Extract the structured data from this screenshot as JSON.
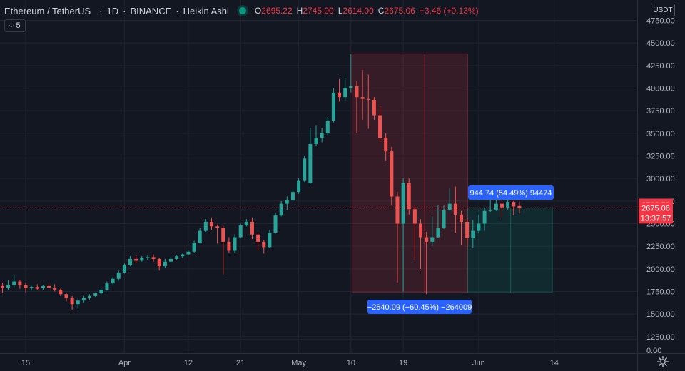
{
  "header": {
    "symbol": "Ethereum / TetherUS",
    "interval": "1D",
    "exchange": "BINANCE",
    "chart_style": "Heikin Ashi",
    "open_label": "O",
    "open": "2695.22",
    "high_label": "H",
    "high": "2745.00",
    "low_label": "L",
    "low": "2614.00",
    "close_label": "C",
    "close": "2675.06",
    "change": "+3.46 (+0.13%)",
    "indicators_count": "5"
  },
  "currency": "USDT",
  "price_tags": {
    "high": "2713.59",
    "last": "2675.06",
    "countdown": "13:37:57"
  },
  "measurements": {
    "drop": "−2640.09 (−60.45%) −264009",
    "rise": "944.74 (54.49%) 94474"
  },
  "colors": {
    "up": "#26a69a",
    "down": "#ef5350",
    "background": "#131722",
    "grid": "#1f2430",
    "axis_text": "#b2b5be",
    "tag_red": "#f23645",
    "label_blue": "#2962ff"
  },
  "chart_data": {
    "type": "candlestick",
    "style": "Heikin Ashi",
    "grid": true,
    "y_ticks": [
      4750,
      4500,
      4250,
      4000,
      3750,
      3500,
      3250,
      3000,
      2750,
      2500,
      2250,
      2000,
      1750,
      1500,
      1250
    ],
    "y_tick_labels": [
      "4750.00",
      "4500.00",
      "4250.00",
      "4000.00",
      "3750.00",
      "3500.00",
      "3250.00",
      "3000.00",
      "2750.00",
      "2500.00",
      "2250.00",
      "2000.00",
      "1750.00",
      "1500.00",
      "1250.00"
    ],
    "volume_zero_label": "0.00",
    "x_ticks": [
      {
        "label": "15",
        "day": 0
      },
      {
        "label": "Apr",
        "day": 17
      },
      {
        "label": "12",
        "day": 28
      },
      {
        "label": "21",
        "day": 37
      },
      {
        "label": "May",
        "day": 47
      },
      {
        "label": "10",
        "day": 56
      },
      {
        "label": "19",
        "day": 65
      },
      {
        "label": "Jun",
        "day": 78
      },
      {
        "label": "14",
        "day": 91
      }
    ],
    "last_price": 2675.06,
    "day_high_line": 2713.59,
    "candles": [
      {
        "day": -4,
        "o": 1810,
        "h": 1850,
        "l": 1730,
        "c": 1790
      },
      {
        "day": -3,
        "o": 1790,
        "h": 1880,
        "l": 1770,
        "c": 1820
      },
      {
        "day": -2,
        "o": 1820,
        "h": 1930,
        "l": 1800,
        "c": 1860
      },
      {
        "day": -1,
        "o": 1860,
        "h": 1880,
        "l": 1780,
        "c": 1820
      },
      {
        "day": 0,
        "o": 1820,
        "h": 1840,
        "l": 1740,
        "c": 1790
      },
      {
        "day": 1,
        "o": 1790,
        "h": 1810,
        "l": 1760,
        "c": 1800
      },
      {
        "day": 2,
        "o": 1800,
        "h": 1830,
        "l": 1770,
        "c": 1780
      },
      {
        "day": 3,
        "o": 1790,
        "h": 1820,
        "l": 1770,
        "c": 1810
      },
      {
        "day": 4,
        "o": 1810,
        "h": 1830,
        "l": 1780,
        "c": 1790
      },
      {
        "day": 5,
        "o": 1790,
        "h": 1830,
        "l": 1750,
        "c": 1770
      },
      {
        "day": 6,
        "o": 1770,
        "h": 1780,
        "l": 1700,
        "c": 1720
      },
      {
        "day": 7,
        "o": 1720,
        "h": 1730,
        "l": 1640,
        "c": 1680
      },
      {
        "day": 8,
        "o": 1680,
        "h": 1700,
        "l": 1550,
        "c": 1610
      },
      {
        "day": 9,
        "o": 1610,
        "h": 1680,
        "l": 1560,
        "c": 1650
      },
      {
        "day": 10,
        "o": 1650,
        "h": 1700,
        "l": 1630,
        "c": 1680
      },
      {
        "day": 11,
        "o": 1680,
        "h": 1720,
        "l": 1660,
        "c": 1700
      },
      {
        "day": 12,
        "o": 1700,
        "h": 1740,
        "l": 1690,
        "c": 1730
      },
      {
        "day": 13,
        "o": 1730,
        "h": 1780,
        "l": 1720,
        "c": 1770
      },
      {
        "day": 14,
        "o": 1770,
        "h": 1860,
        "l": 1760,
        "c": 1840
      },
      {
        "day": 15,
        "o": 1840,
        "h": 1910,
        "l": 1830,
        "c": 1890
      },
      {
        "day": 16,
        "o": 1890,
        "h": 1980,
        "l": 1870,
        "c": 1960
      },
      {
        "day": 17,
        "o": 1960,
        "h": 2060,
        "l": 1950,
        "c": 2040
      },
      {
        "day": 18,
        "o": 2040,
        "h": 2140,
        "l": 2030,
        "c": 2110
      },
      {
        "day": 19,
        "o": 2110,
        "h": 2150,
        "l": 2070,
        "c": 2090
      },
      {
        "day": 20,
        "o": 2090,
        "h": 2140,
        "l": 2080,
        "c": 2120
      },
      {
        "day": 21,
        "o": 2120,
        "h": 2150,
        "l": 2100,
        "c": 2130
      },
      {
        "day": 22,
        "o": 2130,
        "h": 2160,
        "l": 2080,
        "c": 2110
      },
      {
        "day": 23,
        "o": 2110,
        "h": 2120,
        "l": 1980,
        "c": 2030
      },
      {
        "day": 24,
        "o": 2030,
        "h": 2110,
        "l": 2010,
        "c": 2080
      },
      {
        "day": 25,
        "o": 2080,
        "h": 2130,
        "l": 2070,
        "c": 2110
      },
      {
        "day": 26,
        "o": 2110,
        "h": 2150,
        "l": 2100,
        "c": 2140
      },
      {
        "day": 27,
        "o": 2140,
        "h": 2170,
        "l": 2120,
        "c": 2160
      },
      {
        "day": 28,
        "o": 2160,
        "h": 2200,
        "l": 2150,
        "c": 2190
      },
      {
        "day": 29,
        "o": 2190,
        "h": 2310,
        "l": 2180,
        "c": 2290
      },
      {
        "day": 30,
        "o": 2290,
        "h": 2450,
        "l": 2280,
        "c": 2420
      },
      {
        "day": 31,
        "o": 2420,
        "h": 2550,
        "l": 2410,
        "c": 2520
      },
      {
        "day": 32,
        "o": 2520,
        "h": 2570,
        "l": 2430,
        "c": 2470
      },
      {
        "day": 33,
        "o": 2470,
        "h": 2490,
        "l": 2280,
        "c": 2450
      },
      {
        "day": 34,
        "o": 2450,
        "h": 2490,
        "l": 1940,
        "c": 2300
      },
      {
        "day": 35,
        "o": 2300,
        "h": 2350,
        "l": 2180,
        "c": 2200
      },
      {
        "day": 36,
        "o": 2200,
        "h": 2380,
        "l": 2180,
        "c": 2350
      },
      {
        "day": 37,
        "o": 2350,
        "h": 2500,
        "l": 2340,
        "c": 2480
      },
      {
        "day": 38,
        "o": 2480,
        "h": 2550,
        "l": 2470,
        "c": 2520
      },
      {
        "day": 39,
        "o": 2520,
        "h": 2570,
        "l": 2330,
        "c": 2380
      },
      {
        "day": 40,
        "o": 2380,
        "h": 2400,
        "l": 2200,
        "c": 2300
      },
      {
        "day": 41,
        "o": 2300,
        "h": 2320,
        "l": 2170,
        "c": 2240
      },
      {
        "day": 42,
        "o": 2240,
        "h": 2430,
        "l": 2230,
        "c": 2400
      },
      {
        "day": 43,
        "o": 2400,
        "h": 2620,
        "l": 2390,
        "c": 2590
      },
      {
        "day": 44,
        "o": 2590,
        "h": 2750,
        "l": 2580,
        "c": 2720
      },
      {
        "day": 45,
        "o": 2720,
        "h": 2800,
        "l": 2650,
        "c": 2760
      },
      {
        "day": 46,
        "o": 2760,
        "h": 2880,
        "l": 2750,
        "c": 2850
      },
      {
        "day": 47,
        "o": 2850,
        "h": 3000,
        "l": 2830,
        "c": 2980
      },
      {
        "day": 48,
        "o": 2980,
        "h": 3250,
        "l": 2960,
        "c": 3220
      },
      {
        "day": 49,
        "o": 2950,
        "h": 3560,
        "l": 2940,
        "c": 3380
      },
      {
        "day": 50,
        "o": 3380,
        "h": 3590,
        "l": 3360,
        "c": 3450
      },
      {
        "day": 51,
        "o": 3450,
        "h": 3560,
        "l": 3400,
        "c": 3500
      },
      {
        "day": 52,
        "o": 3500,
        "h": 3680,
        "l": 3480,
        "c": 3640
      },
      {
        "day": 53,
        "o": 3640,
        "h": 4000,
        "l": 3620,
        "c": 3950
      },
      {
        "day": 54,
        "o": 3950,
        "h": 4100,
        "l": 3850,
        "c": 3900
      },
      {
        "day": 55,
        "o": 3900,
        "h": 4110,
        "l": 3860,
        "c": 4000
      },
      {
        "day": 56,
        "o": 4000,
        "h": 4380,
        "l": 3950,
        "c": 4020
      },
      {
        "day": 57,
        "o": 4020,
        "h": 4080,
        "l": 3500,
        "c": 3900
      },
      {
        "day": 58,
        "o": 3900,
        "h": 4200,
        "l": 3650,
        "c": 3880
      },
      {
        "day": 59,
        "o": 3880,
        "h": 4150,
        "l": 3550,
        "c": 3870
      },
      {
        "day": 60,
        "o": 3870,
        "h": 3900,
        "l": 3650,
        "c": 3700
      },
      {
        "day": 61,
        "o": 3700,
        "h": 3800,
        "l": 3400,
        "c": 3450
      },
      {
        "day": 62,
        "o": 3450,
        "h": 3500,
        "l": 3200,
        "c": 3300
      },
      {
        "day": 63,
        "o": 3300,
        "h": 3350,
        "l": 2700,
        "c": 2800
      },
      {
        "day": 64,
        "o": 2800,
        "h": 2850,
        "l": 1850,
        "c": 2500
      },
      {
        "day": 65,
        "o": 2500,
        "h": 3000,
        "l": 1750,
        "c": 2950
      },
      {
        "day": 66,
        "o": 2950,
        "h": 3000,
        "l": 2600,
        "c": 2660
      },
      {
        "day": 67,
        "o": 2660,
        "h": 2700,
        "l": 2100,
        "c": 2500
      },
      {
        "day": 68,
        "o": 2500,
        "h": 2550,
        "l": 2000,
        "c": 2350
      },
      {
        "day": 69,
        "o": 2350,
        "h": 2410,
        "l": 1720,
        "c": 2300
      },
      {
        "day": 70,
        "o": 2300,
        "h": 2580,
        "l": 2250,
        "c": 2350
      },
      {
        "day": 71,
        "o": 2350,
        "h": 2700,
        "l": 2340,
        "c": 2450
      },
      {
        "day": 72,
        "o": 2450,
        "h": 2700,
        "l": 2440,
        "c": 2650
      },
      {
        "day": 73,
        "o": 2650,
        "h": 2890,
        "l": 2640,
        "c": 2720
      },
      {
        "day": 74,
        "o": 2720,
        "h": 2910,
        "l": 2400,
        "c": 2600
      },
      {
        "day": 75,
        "o": 2600,
        "h": 2640,
        "l": 2260,
        "c": 2520
      },
      {
        "day": 76,
        "o": 2520,
        "h": 2560,
        "l": 2240,
        "c": 2340
      },
      {
        "day": 77,
        "o": 2340,
        "h": 2540,
        "l": 2230,
        "c": 2420
      },
      {
        "day": 78,
        "o": 2420,
        "h": 2600,
        "l": 2400,
        "c": 2500
      },
      {
        "day": 79,
        "o": 2500,
        "h": 2680,
        "l": 2420,
        "c": 2640
      },
      {
        "day": 80,
        "o": 2640,
        "h": 2780,
        "l": 2630,
        "c": 2650
      },
      {
        "day": 81,
        "o": 2650,
        "h": 2800,
        "l": 2640,
        "c": 2720
      },
      {
        "day": 82,
        "o": 2720,
        "h": 2760,
        "l": 2560,
        "c": 2680
      },
      {
        "day": 83,
        "o": 2680,
        "h": 2790,
        "l": 2650,
        "c": 2740
      },
      {
        "day": 84,
        "o": 2740,
        "h": 2750,
        "l": 2590,
        "c": 2690
      },
      {
        "day": 85,
        "o": 2695,
        "h": 2745,
        "l": 2614,
        "c": 2675
      }
    ]
  }
}
